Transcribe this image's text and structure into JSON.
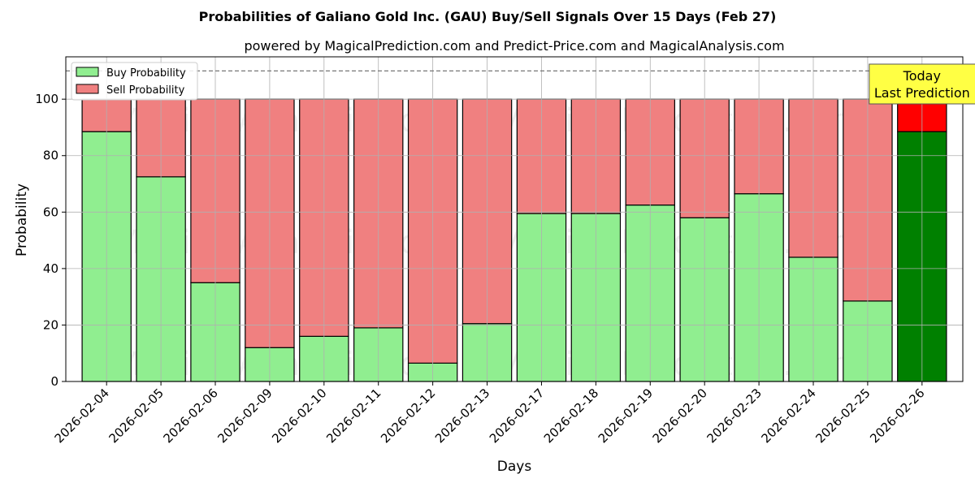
{
  "chart_data": {
    "type": "bar",
    "stacked": true,
    "title": "Probabilities of Galiano Gold Inc. (GAU) Buy/Sell Signals Over 15 Days (Feb 27)",
    "subtitle": "powered by MagicalPrediction.com and Predict-Price.com and MagicalAnalysis.com",
    "xlabel": "Days",
    "ylabel": "Probability",
    "ylim": [
      0,
      115
    ],
    "yticks": [
      0,
      20,
      40,
      60,
      80,
      100
    ],
    "reference_line": 110,
    "grid": true,
    "legend_position": "top-left",
    "categories": [
      "2026-02-04",
      "2026-02-05",
      "2026-02-06",
      "2026-02-09",
      "2026-02-10",
      "2026-02-11",
      "2026-02-12",
      "2026-02-13",
      "2026-02-17",
      "2026-02-18",
      "2026-02-19",
      "2026-02-20",
      "2026-02-23",
      "2026-02-24",
      "2026-02-25",
      "2026-02-26"
    ],
    "series": [
      {
        "name": "Buy Probability",
        "color": "#90EE90",
        "highlight_color": "#008000",
        "values": [
          88.5,
          72.5,
          35,
          12,
          16,
          19,
          6.5,
          20.5,
          59.5,
          59.5,
          62.5,
          58,
          66.5,
          44,
          28.5,
          88.5
        ]
      },
      {
        "name": "Sell Probability",
        "color": "#F08080",
        "highlight_color": "#FF0000",
        "values": [
          11.5,
          27.5,
          65,
          88,
          84,
          81,
          93.5,
          79.5,
          40.5,
          40.5,
          37.5,
          42,
          33.5,
          56,
          71.5,
          11.5
        ]
      }
    ],
    "highlight_index": 15,
    "annotation": {
      "lines": [
        "Today",
        "Last Prediction"
      ],
      "color": "#FFFF44"
    },
    "watermarks": [
      "MagicalAnalysis.com",
      "MagicalPrediction.com"
    ]
  }
}
